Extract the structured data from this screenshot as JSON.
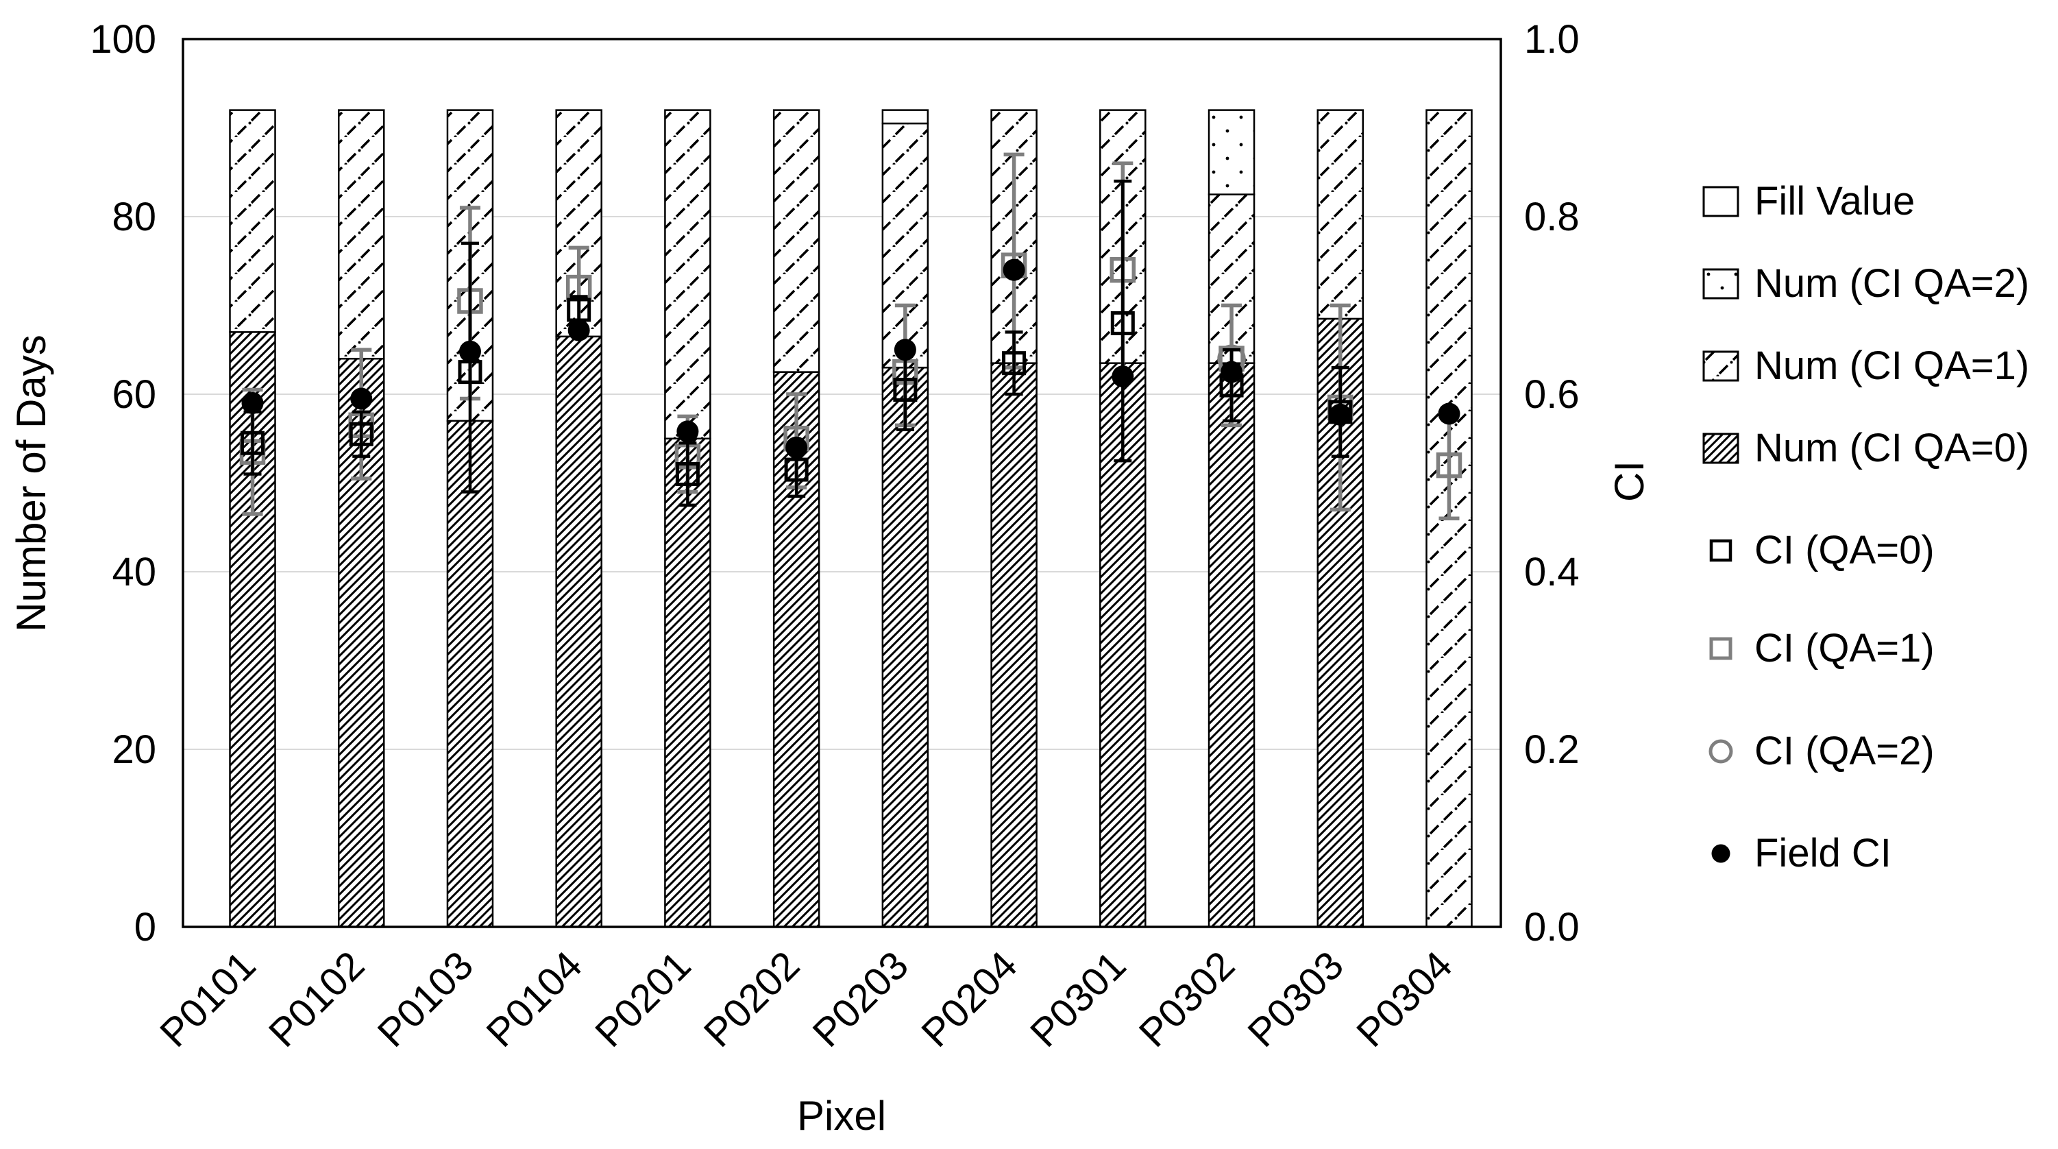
{
  "figure": {
    "background": "#ffffff"
  },
  "colors": {
    "black": "#000000",
    "gray": "#7f7f7f",
    "grid": "#d9d9d9",
    "frame": "#000000",
    "bar_fill": "#ffffff"
  },
  "chart_data": {
    "type": "bar",
    "stacked": true,
    "grid": "horizontal-major",
    "bar_total": 92,
    "categories": [
      "P0101",
      "P0102",
      "P0103",
      "P0104",
      "P0201",
      "P0202",
      "P0203",
      "P0204",
      "P0301",
      "P0302",
      "P0303",
      "P0304"
    ],
    "x_axis": {
      "label": "Pixel"
    },
    "left_axis": {
      "label": "Number of Days",
      "min": 0,
      "max": 100,
      "ticks": [
        0,
        20,
        40,
        60,
        80,
        100
      ]
    },
    "right_axis": {
      "label": "CI",
      "min": 0.0,
      "max": 1.0,
      "ticks": [
        "0.0",
        "0.2",
        "0.4",
        "0.6",
        "0.8",
        "1.0"
      ]
    },
    "series": [
      {
        "name": "Num (CI QA=0)",
        "pattern": "hatch-dense",
        "axis": "left",
        "values": [
          67,
          64,
          57,
          66.5,
          55,
          62.5,
          63,
          63.5,
          63.5,
          63.5,
          68.5,
          0
        ]
      },
      {
        "name": "Num (CI QA=1)",
        "pattern": "hatch-light",
        "axis": "left",
        "values": [
          25,
          28,
          35,
          25.5,
          37,
          29.5,
          27.5,
          28.5,
          28.5,
          19,
          23.5,
          92
        ]
      },
      {
        "name": "Num (CI QA=2)",
        "pattern": "dots",
        "axis": "left",
        "values": [
          0,
          0,
          0,
          0,
          0,
          0,
          0,
          0,
          0,
          9.5,
          0,
          0
        ]
      },
      {
        "name": "Fill Value",
        "pattern": "blank",
        "axis": "left",
        "values": [
          0,
          0,
          0,
          0,
          0,
          0,
          1.5,
          0,
          0,
          0,
          0,
          0
        ]
      }
    ],
    "marker_series": [
      {
        "name": "CI (QA=1)",
        "marker": "square-open",
        "color": "#7f7f7f",
        "axis": "right",
        "values": [
          0.535,
          0.565,
          0.705,
          0.72,
          0.53,
          0.55,
          0.625,
          0.745,
          0.74,
          0.64,
          0.585,
          0.52
        ],
        "err_lo": [
          0.465,
          0.505,
          0.595,
          0.675,
          0.49,
          0.495,
          0.565,
          0.63,
          0.62,
          0.565,
          0.47,
          0.46
        ],
        "err_hi": [
          0.605,
          0.65,
          0.81,
          0.765,
          0.575,
          0.6,
          0.7,
          0.87,
          0.86,
          0.7,
          0.7,
          0.575
        ]
      },
      {
        "name": "CI (QA=2)",
        "marker": "circle-open",
        "color": "#7f7f7f",
        "axis": "right",
        "values": [
          null,
          null,
          null,
          null,
          null,
          null,
          null,
          null,
          null,
          0.64,
          null,
          null
        ],
        "err_lo": [
          null,
          null,
          null,
          null,
          null,
          null,
          null,
          null,
          null,
          null,
          null,
          null
        ],
        "err_hi": [
          null,
          null,
          null,
          null,
          null,
          null,
          null,
          null,
          null,
          null,
          null,
          null
        ]
      },
      {
        "name": "CI (QA=0)",
        "marker": "square-open",
        "color": "#000000",
        "axis": "right",
        "values": [
          0.545,
          0.555,
          0.625,
          0.695,
          0.51,
          0.515,
          0.605,
          0.635,
          0.68,
          0.61,
          0.58,
          null
        ],
        "err_lo": [
          0.51,
          0.53,
          0.49,
          0.675,
          0.475,
          0.485,
          0.56,
          0.6,
          0.525,
          0.57,
          0.53,
          null
        ],
        "err_hi": [
          0.58,
          0.58,
          0.77,
          0.71,
          0.545,
          0.545,
          0.65,
          0.67,
          0.84,
          0.65,
          0.63,
          null
        ]
      },
      {
        "name": "Field CI",
        "marker": "circle-filled",
        "color": "#000000",
        "axis": "right",
        "values": [
          0.59,
          0.595,
          0.648,
          0.672,
          0.558,
          0.54,
          0.65,
          0.74,
          0.62,
          0.625,
          0.577,
          0.578
        ],
        "err_lo": [
          null,
          null,
          null,
          null,
          null,
          null,
          null,
          null,
          null,
          null,
          null,
          null
        ],
        "err_hi": [
          null,
          null,
          null,
          null,
          null,
          null,
          null,
          null,
          null,
          null,
          null,
          null
        ]
      }
    ],
    "legend": {
      "position": "right",
      "entries": [
        {
          "label": "Fill Value",
          "swatch": "patch-blank"
        },
        {
          "label": "Num (CI QA=2)",
          "swatch": "patch-dots"
        },
        {
          "label": "Num (CI QA=1)",
          "swatch": "patch-hatch-light"
        },
        {
          "label": "Num (CI QA=0)",
          "swatch": "patch-hatch-dense"
        },
        {
          "label": "CI (QA=0)",
          "swatch": "square-open-black"
        },
        {
          "label": "CI (QA=1)",
          "swatch": "square-open-gray"
        },
        {
          "label": "CI (QA=2)",
          "swatch": "circle-open-gray"
        },
        {
          "label": "Field CI",
          "swatch": "circle-filled-black"
        }
      ]
    }
  }
}
